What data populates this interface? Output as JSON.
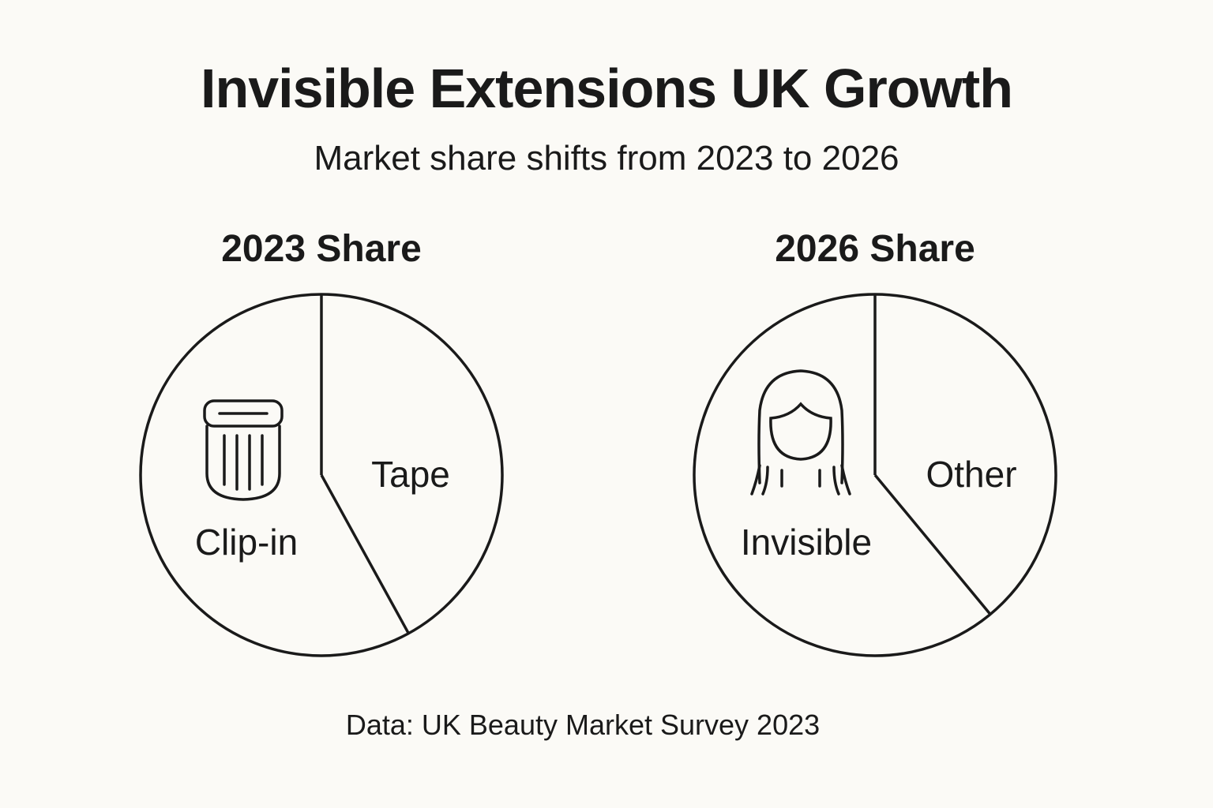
{
  "chart_data": [
    {
      "type": "pie",
      "title": "2023 Share",
      "categories": [
        "Tape",
        "Clip-in"
      ],
      "values": [
        42,
        58
      ],
      "icons": {
        "Clip-in": "hair-clip-icon"
      }
    },
    {
      "type": "pie",
      "title": "2026 Share",
      "categories": [
        "Other",
        "Invisible"
      ],
      "values": [
        39,
        61
      ],
      "icons": {
        "Invisible": "woman-long-hair-icon"
      }
    }
  ],
  "title": "Invisible Extensions UK Growth",
  "subtitle": "Market share shifts from 2023 to 2026",
  "source": "Data: UK Beauty Market Survey 2023",
  "colors": {
    "background": "#fbfaf6",
    "stroke": "#1a1a1a"
  }
}
